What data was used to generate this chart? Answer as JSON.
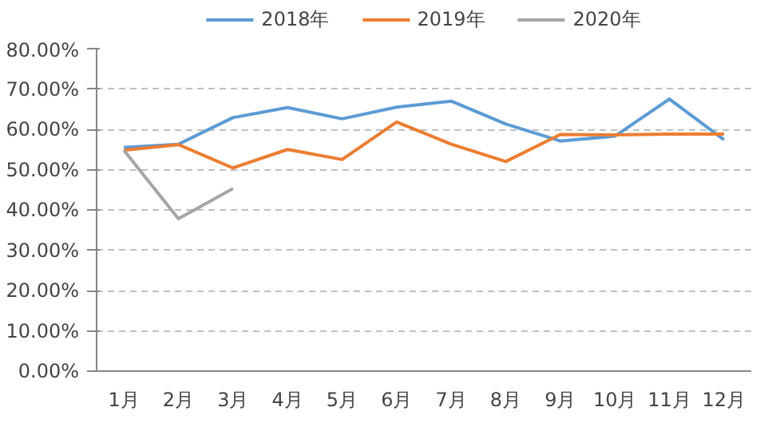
{
  "chart_data": {
    "type": "line",
    "categories": [
      "1月",
      "2月",
      "3月",
      "4月",
      "5月",
      "6月",
      "7月",
      "8月",
      "9月",
      "10月",
      "11月",
      "12月"
    ],
    "series": [
      {
        "name": "2018年",
        "color": "#5b9bd5",
        "values": [
          55.5,
          56.3,
          62.9,
          65.4,
          62.6,
          65.5,
          67.0,
          61.3,
          57.1,
          58.3,
          67.5,
          57.4
        ]
      },
      {
        "name": "2019年",
        "color": "#ed7d31",
        "values": [
          54.8,
          56.2,
          50.4,
          55.0,
          52.5,
          61.8,
          56.3,
          52.0,
          58.7,
          58.6,
          58.8,
          58.8
        ]
      },
      {
        "name": "2020年",
        "color": "#a5a5a5",
        "values": [
          54.8,
          37.8,
          45.3,
          null,
          null,
          null,
          null,
          null,
          null,
          null,
          null,
          null
        ]
      }
    ],
    "ylim": [
      0,
      80
    ],
    "yticks": [
      {
        "value": 0,
        "label": "0.00%"
      },
      {
        "value": 10,
        "label": "10.00%"
      },
      {
        "value": 20,
        "label": "20.00%"
      },
      {
        "value": 30,
        "label": "30.00%"
      },
      {
        "value": 40,
        "label": "40.00%"
      },
      {
        "value": 50,
        "label": "50.00%"
      },
      {
        "value": 60,
        "label": "60.00%"
      },
      {
        "value": 70,
        "label": "70.00%"
      },
      {
        "value": 80,
        "label": "80.00%"
      }
    ],
    "grid": "y",
    "legend": "top",
    "marker": "none",
    "line_style": "solid"
  }
}
